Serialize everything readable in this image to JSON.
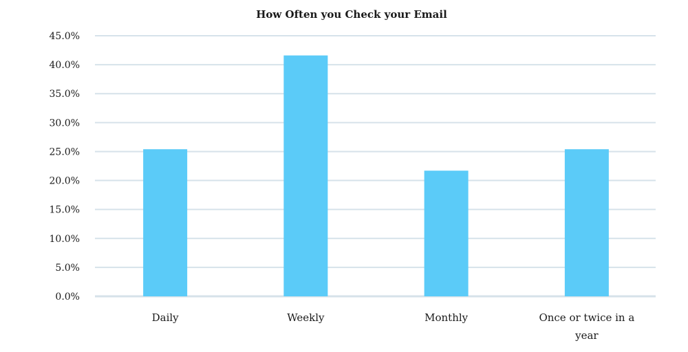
{
  "chart_data": {
    "type": "bar",
    "title": "How Often you Check your Email",
    "categories": [
      "Daily",
      "Weekly",
      "Monthly",
      "Once or twice in a year"
    ],
    "values": [
      25.4,
      41.6,
      21.7,
      25.4
    ],
    "ylim": [
      0,
      45
    ],
    "yticks": [
      "0.0%",
      "5.0%",
      "10.0%",
      "15.0%",
      "20.0%",
      "25.0%",
      "30.0%",
      "35.0%",
      "40.0%",
      "45.0%"
    ],
    "grid": true,
    "bar_color": "#5bcbf8",
    "gridline_color": "#d6e2ea"
  }
}
